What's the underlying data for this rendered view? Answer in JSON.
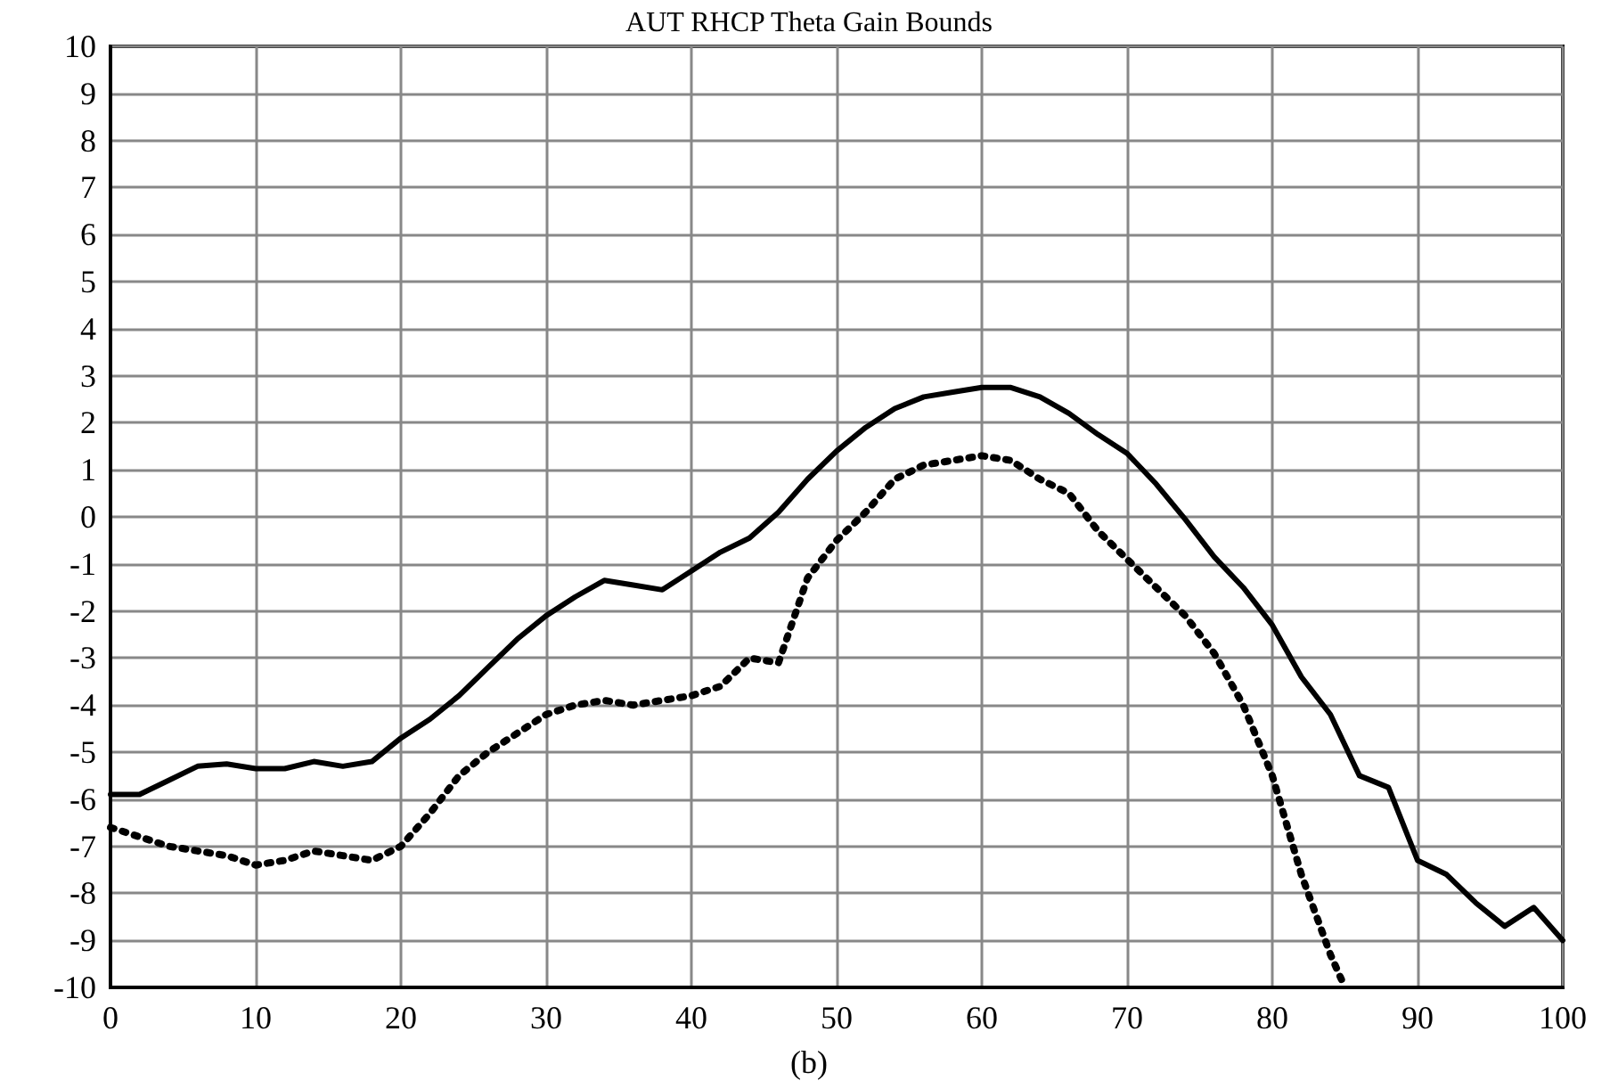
{
  "chart_data": {
    "type": "line",
    "title": "AUT RHCP Theta Gain Bounds",
    "annotations": [
      "(b)"
    ],
    "xlim": [
      0,
      100
    ],
    "xticks": [
      0,
      10,
      20,
      30,
      40,
      50,
      60,
      70,
      80,
      90,
      100
    ],
    "ylim": [
      -10,
      10
    ],
    "yticks": [
      -10,
      -9,
      -8,
      -7,
      -6,
      -5,
      -4,
      -3,
      -2,
      -1,
      0,
      1,
      2,
      3,
      4,
      5,
      6,
      7,
      8,
      9,
      10
    ],
    "grid": true,
    "marker": "none",
    "series": [
      {
        "color": "#000000",
        "line_style": "solid",
        "x": [
          0,
          2,
          4,
          6,
          8,
          10,
          12,
          14,
          16,
          18,
          20,
          22,
          24,
          26,
          28,
          30,
          32,
          34,
          36,
          38,
          40,
          42,
          44,
          46,
          48,
          50,
          52,
          54,
          56,
          58,
          60,
          62,
          64,
          66,
          68,
          70,
          72,
          74,
          76,
          78,
          80,
          82,
          84,
          86,
          88,
          90,
          92,
          94,
          96,
          98,
          100
        ],
        "values": [
          -5.9,
          -5.9,
          -5.6,
          -5.3,
          -5.25,
          -5.35,
          -5.35,
          -5.2,
          -5.3,
          -5.2,
          -4.7,
          -4.3,
          -3.8,
          -3.2,
          -2.6,
          -2.1,
          -1.7,
          -1.35,
          -1.45,
          -1.55,
          -1.15,
          -0.75,
          -0.45,
          0.1,
          0.8,
          1.4,
          1.9,
          2.3,
          2.55,
          2.65,
          2.75,
          2.75,
          2.55,
          2.2,
          1.75,
          1.35,
          0.7,
          -0.05,
          -0.85,
          -1.5,
          -2.3,
          -3.4,
          -4.2,
          -5.5,
          -5.75,
          -7.3,
          -7.6,
          -8.2,
          -8.7,
          -8.3,
          -9.0
        ]
      },
      {
        "color": "#000000",
        "line_style": "dotted",
        "x": [
          0,
          2,
          4,
          6,
          8,
          10,
          12,
          14,
          16,
          18,
          20,
          22,
          24,
          26,
          28,
          30,
          32,
          34,
          36,
          38,
          40,
          42,
          44,
          46,
          48,
          50,
          52,
          54,
          56,
          58,
          60,
          62,
          64,
          66,
          68,
          70,
          72,
          74,
          76,
          78,
          80,
          82,
          84,
          85
        ],
        "values": [
          -6.6,
          -6.8,
          -7.0,
          -7.1,
          -7.2,
          -7.4,
          -7.3,
          -7.1,
          -7.2,
          -7.3,
          -7.0,
          -6.3,
          -5.5,
          -5.0,
          -4.6,
          -4.2,
          -4.0,
          -3.9,
          -4.0,
          -3.9,
          -3.8,
          -3.6,
          -3.0,
          -3.1,
          -1.3,
          -0.5,
          0.1,
          0.8,
          1.1,
          1.2,
          1.3,
          1.2,
          0.8,
          0.5,
          -0.3,
          -0.9,
          -1.5,
          -2.1,
          -2.9,
          -4.0,
          -5.5,
          -7.6,
          -9.3,
          -10
        ]
      }
    ]
  }
}
